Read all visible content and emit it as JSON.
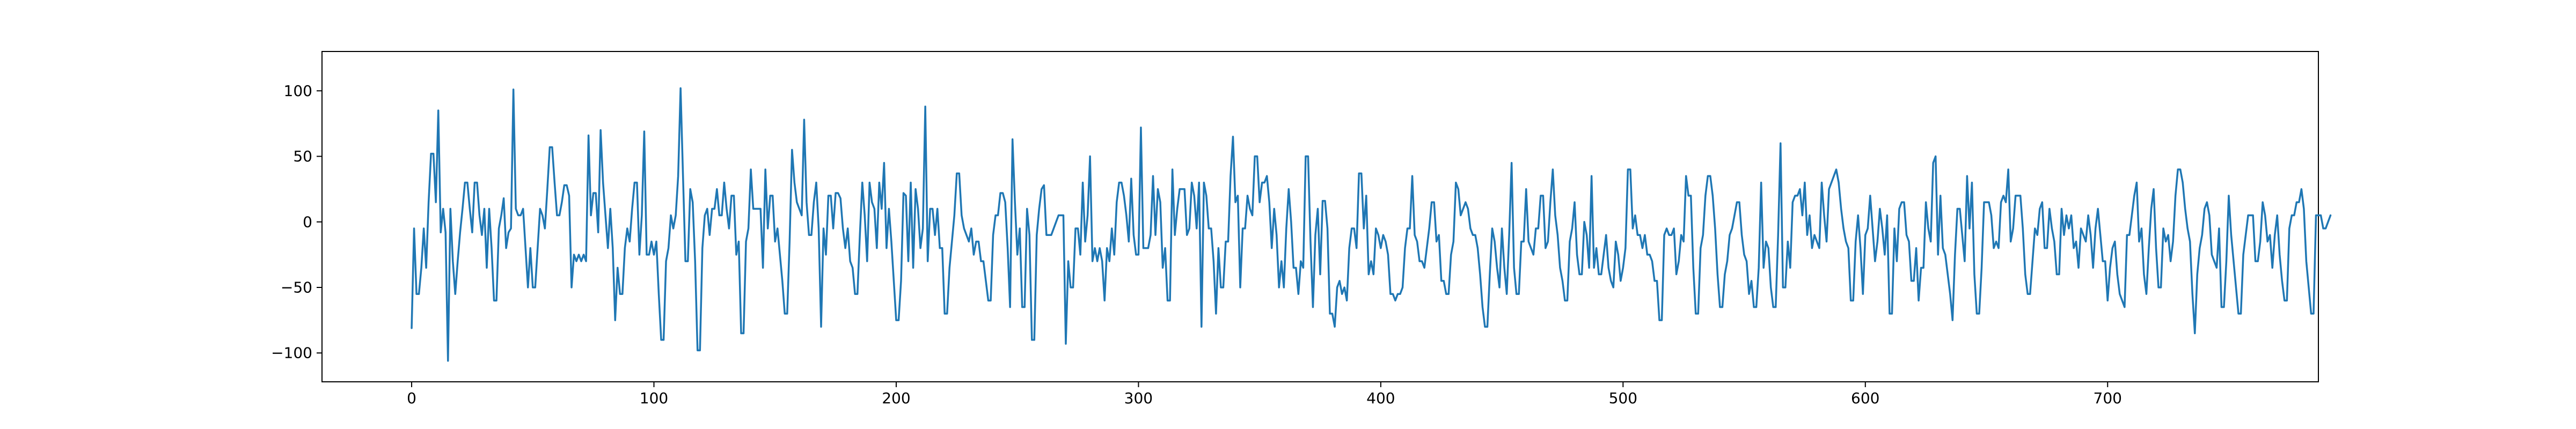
{
  "chart_data": {
    "type": "line",
    "title": "",
    "xlabel": "",
    "ylabel": "",
    "xlim": [
      -37,
      787
    ],
    "ylim": [
      -122,
      130
    ],
    "x_ticks": [
      0,
      100,
      200,
      300,
      400,
      500,
      600,
      700
    ],
    "y_ticks": [
      -100,
      -50,
      0,
      50,
      100
    ],
    "grid": false,
    "legend": "none",
    "series": [
      {
        "color": "#1f77b4",
        "x_start": 0,
        "x_step": 1,
        "values": [
          -81,
          -5,
          -55,
          -55,
          -35,
          -5,
          -35,
          15,
          52,
          52,
          15,
          85,
          -8,
          10,
          -8,
          -106,
          10,
          -30,
          -55,
          -30,
          -8,
          10,
          30,
          30,
          10,
          -8,
          30,
          30,
          5,
          -10,
          10,
          -35,
          10,
          -20,
          -60,
          -60,
          -5,
          5,
          18,
          -20,
          -8,
          -5,
          101,
          10,
          5,
          5,
          10,
          -20,
          -50,
          -20,
          -50,
          -50,
          -20,
          10,
          5,
          -5,
          25,
          57,
          57,
          30,
          5,
          5,
          15,
          28,
          28,
          20,
          -50,
          -25,
          -30,
          -25,
          -30,
          -25,
          -30,
          66,
          5,
          22,
          22,
          -8,
          70,
          30,
          5,
          -20,
          10,
          -20,
          -75,
          -35,
          -55,
          -55,
          -20,
          -5,
          -15,
          10,
          30,
          30,
          -25,
          5,
          69,
          -25,
          -25,
          -15,
          -25,
          -15,
          -55,
          -90,
          -90,
          -30,
          -20,
          5,
          -5,
          5,
          35,
          102,
          35,
          -30,
          -30,
          25,
          15,
          -30,
          -98,
          -98,
          -20,
          5,
          10,
          -10,
          10,
          10,
          25,
          5,
          5,
          30,
          10,
          -5,
          20,
          20,
          -25,
          -15,
          -85,
          -85,
          -15,
          -5,
          40,
          10,
          10,
          10,
          10,
          -35,
          40,
          -5,
          20,
          20,
          -15,
          -5,
          -25,
          -45,
          -70,
          -70,
          -15,
          55,
          30,
          15,
          10,
          5,
          78,
          15,
          -10,
          -10,
          15,
          30,
          -5,
          -80,
          -5,
          -25,
          20,
          20,
          -5,
          22,
          22,
          18,
          -5,
          -20,
          -5,
          -30,
          -35,
          -55,
          -55,
          -10,
          30,
          5,
          -30,
          30,
          15,
          10,
          -20,
          30,
          10,
          45,
          -20,
          10,
          -15,
          -45,
          -75,
          -75,
          -45,
          22,
          20,
          -30,
          30,
          -35,
          25,
          10,
          -20,
          -5,
          88,
          -30,
          10,
          10,
          -10,
          10,
          -20,
          -20,
          -70,
          -70,
          -35,
          -15,
          5,
          37,
          37,
          5,
          -5,
          -10,
          -15,
          -5,
          -25,
          -15,
          -15,
          -30,
          -30,
          -45,
          -60,
          -60,
          -10,
          5,
          5,
          22,
          22,
          15,
          -20,
          -65,
          63,
          15,
          -25,
          -5,
          -65,
          -65,
          10,
          -10,
          -90,
          -90,
          -10,
          10,
          25,
          28,
          -10,
          -10,
          -10,
          -5,
          0,
          5,
          5,
          5,
          -93,
          -30,
          -50,
          -50,
          -5,
          -5,
          -25,
          30,
          -15,
          5,
          50,
          -30,
          -20,
          -30,
          -20,
          -30,
          -60,
          -20,
          -30,
          -5,
          -25,
          15,
          30,
          30,
          20,
          5,
          -15,
          33,
          -10,
          -25,
          -25,
          72,
          -20,
          -20,
          -20,
          -10,
          35,
          -10,
          25,
          15,
          -35,
          -20,
          -60,
          -60,
          40,
          -10,
          10,
          25,
          25,
          25,
          -10,
          -5,
          30,
          20,
          -5,
          30,
          -80,
          30,
          20,
          -5,
          -5,
          -30,
          -70,
          -20,
          -50,
          -50,
          -15,
          -15,
          35,
          65,
          15,
          20,
          -50,
          -5,
          -5,
          20,
          10,
          5,
          50,
          50,
          15,
          30,
          30,
          35,
          15,
          -20,
          10,
          -10,
          -50,
          -30,
          -50,
          -5,
          25,
          0,
          -35,
          -35,
          -55,
          -30,
          -35,
          50,
          50,
          -15,
          -65,
          -10,
          10,
          -40,
          16,
          16,
          -5,
          -70,
          -70,
          -80,
          -50,
          -45,
          -55,
          -50,
          -60,
          -20,
          -5,
          -5,
          -20,
          37,
          37,
          -5,
          20,
          -40,
          -30,
          -40,
          -5,
          -10,
          -20,
          -10,
          -15,
          -25,
          -55,
          -55,
          -60,
          -55,
          -55,
          -50,
          -20,
          -5,
          -5,
          35,
          -10,
          -15,
          -30,
          -30,
          -35,
          -20,
          -5,
          15,
          15,
          -15,
          -10,
          -45,
          -45,
          -55,
          -55,
          -25,
          -15,
          30,
          25,
          5,
          10,
          15,
          10,
          -5,
          -10,
          -10,
          -20,
          -40,
          -65,
          -80,
          -80,
          -40,
          -5,
          -15,
          -35,
          -50,
          -5,
          -35,
          -55,
          -10,
          45,
          -35,
          -55,
          -55,
          -15,
          -15,
          25,
          -15,
          -20,
          -25,
          -5,
          -5,
          20,
          20,
          -20,
          -15,
          15,
          40,
          5,
          -10,
          -35,
          -45,
          -60,
          -60,
          -15,
          -5,
          15,
          -25,
          -40,
          -40,
          0,
          -10,
          -35,
          35,
          -35,
          -20,
          -40,
          -40,
          -25,
          -10,
          -35,
          -45,
          -50,
          -15,
          -25,
          -45,
          -35,
          -20,
          40,
          40,
          -5,
          5,
          -10,
          -10,
          -20,
          -10,
          -25,
          -25,
          -30,
          -45,
          -45,
          -75,
          -75,
          -10,
          -5,
          -10,
          -10,
          -5,
          -40,
          -30,
          -10,
          -15,
          35,
          20,
          20,
          -35,
          -70,
          -70,
          -20,
          -10,
          20,
          35,
          35,
          20,
          -5,
          -40,
          -65,
          -65,
          -40,
          -30,
          -10,
          -5,
          5,
          15,
          15,
          -10,
          -25,
          -30,
          -55,
          -45,
          -65,
          -65,
          -35,
          30,
          -35,
          -15,
          -20,
          -50,
          -65,
          -65,
          -10,
          60,
          -50,
          -50,
          -15,
          -35,
          15,
          20,
          20,
          25,
          5,
          30,
          -10,
          5,
          -20,
          -10,
          -15,
          -20,
          30,
          5,
          -15,
          25,
          30,
          35,
          40,
          30,
          10,
          -5,
          -15,
          -20,
          -60,
          -60,
          -15,
          5,
          -20,
          -55,
          -10,
          -5,
          20,
          -5,
          -30,
          -15,
          10,
          -5,
          -25,
          5,
          -70,
          -70,
          -5,
          -30,
          10,
          15,
          15,
          -10,
          -15,
          -45,
          -45,
          -20,
          -60,
          -35,
          -35,
          15,
          -5,
          -15,
          45,
          50,
          -25,
          20,
          -20,
          -25,
          -40,
          -55,
          -75,
          -25,
          10,
          10,
          -10,
          -30,
          35,
          -5,
          30,
          -40,
          -70,
          -70,
          -35,
          15,
          15,
          15,
          5,
          -20,
          -15,
          -20,
          15,
          20,
          15,
          40,
          -15,
          -5,
          20,
          20,
          20,
          -5,
          -40,
          -55,
          -55,
          -30,
          -5,
          -10,
          10,
          15,
          -20,
          -20,
          10,
          -5,
          -15,
          -40,
          -40,
          10,
          -10,
          5,
          -5,
          5,
          -20,
          -15,
          -35,
          -5,
          -10,
          -15,
          5,
          -10,
          -35,
          -5,
          10,
          -10,
          -30,
          -30,
          -60,
          -35,
          -20,
          -15,
          -40,
          -55,
          -60,
          -65,
          -10,
          -10,
          5,
          20,
          30,
          -15,
          -5,
          -40,
          -55,
          -20,
          10,
          25,
          -20,
          -50,
          -50,
          -5,
          -15,
          -10,
          -30,
          -15,
          20,
          40,
          40,
          30,
          10,
          -5,
          -15,
          -55,
          -85,
          -40,
          -20,
          -10,
          10,
          15,
          5,
          -25,
          -30,
          -35,
          -5,
          -65,
          -65,
          -30,
          20,
          -10,
          -30,
          -50,
          -70,
          -70,
          -25,
          -10,
          5,
          5,
          5,
          -30,
          -30,
          -15,
          15,
          5,
          -15,
          -10,
          -35,
          -10,
          5,
          -25,
          -45,
          -60,
          -60,
          -5,
          5,
          5,
          15,
          15,
          25,
          10,
          -30,
          -50,
          -70,
          -70,
          5,
          5,
          5,
          -5,
          -5,
          0,
          5
        ]
      }
    ]
  }
}
